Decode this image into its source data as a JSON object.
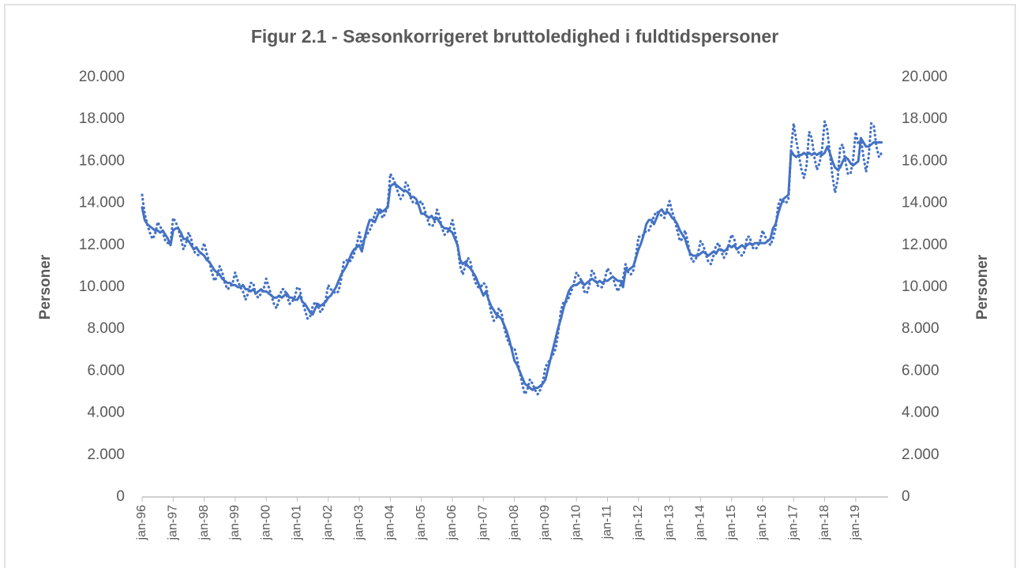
{
  "chart_data": {
    "type": "line",
    "title": "Figur 2.1 - Sæsonkorrigeret bruttoledighed i fuldtidspersoner",
    "ylabel": "Personer",
    "y2label": "Personer",
    "ylim": [
      0,
      20000
    ],
    "yticks": [
      0,
      {
        "value": 2000,
        "label": "2.000"
      },
      {
        "value": 4000,
        "label": "4.000"
      },
      {
        "value": 6000,
        "label": "6.000"
      },
      {
        "value": 8000,
        "label": "8.000"
      },
      {
        "value": 10000,
        "label": "10.000"
      },
      {
        "value": 12000,
        "label": "12.000"
      },
      {
        "value": 14000,
        "label": "14.000"
      },
      {
        "value": 16000,
        "label": "16.000"
      },
      {
        "value": 18000,
        "label": "18.000"
      },
      {
        "value": 20000,
        "label": "20.000"
      }
    ],
    "y2lim": [
      0,
      20000
    ],
    "y2ticks": [
      0,
      {
        "value": 2000,
        "label": "2.000"
      },
      {
        "value": 4000,
        "label": "4.000"
      },
      {
        "value": 6000,
        "label": "6.000"
      },
      {
        "value": 8000,
        "label": "8.000"
      },
      {
        "value": 10000,
        "label": "10.000"
      },
      {
        "value": 12000,
        "label": "12.000"
      },
      {
        "value": 14000,
        "label": "14.000"
      },
      {
        "value": 16000,
        "label": "16.000"
      },
      {
        "value": 18000,
        "label": "18.000"
      },
      {
        "value": 20000,
        "label": "20.000"
      }
    ],
    "grid": false,
    "categories": [
      "jan-96",
      null,
      null,
      null,
      null,
      null,
      null,
      null,
      null,
      null,
      null,
      null,
      "jan-97",
      null,
      null,
      null,
      null,
      null,
      null,
      null,
      null,
      null,
      null,
      null,
      "jan-98",
      null,
      null,
      null,
      null,
      null,
      null,
      null,
      null,
      null,
      null,
      null,
      "jan-99",
      null,
      null,
      null,
      null,
      null,
      null,
      null,
      null,
      null,
      null,
      null,
      "jan-00",
      null,
      null,
      null,
      null,
      null,
      null,
      null,
      null,
      null,
      null,
      null,
      "jan-01",
      null,
      null,
      null,
      null,
      null,
      null,
      null,
      null,
      null,
      null,
      null,
      "jan-02",
      null,
      null,
      null,
      null,
      null,
      null,
      null,
      null,
      null,
      null,
      null,
      "jan-03",
      null,
      null,
      null,
      null,
      null,
      null,
      null,
      null,
      null,
      null,
      null,
      "jan-04",
      null,
      null,
      null,
      null,
      null,
      null,
      null,
      null,
      null,
      null,
      null,
      "jan-05",
      null,
      null,
      null,
      null,
      null,
      null,
      null,
      null,
      null,
      null,
      null,
      "jan-06",
      null,
      null,
      null,
      null,
      null,
      null,
      null,
      null,
      null,
      null,
      null,
      "jan-07",
      null,
      null,
      null,
      null,
      null,
      null,
      null,
      null,
      null,
      null,
      null,
      "jan-08",
      null,
      null,
      null,
      null,
      null,
      null,
      null,
      null,
      null,
      null,
      null,
      "jan-09",
      null,
      null,
      null,
      null,
      null,
      null,
      null,
      null,
      null,
      null,
      null,
      "jan-10",
      null,
      null,
      null,
      null,
      null,
      null,
      null,
      null,
      null,
      null,
      null,
      "jan-11",
      null,
      null,
      null,
      null,
      null,
      null,
      null,
      null,
      null,
      null,
      null,
      "jan-12",
      null,
      null,
      null,
      null,
      null,
      null,
      null,
      null,
      null,
      null,
      null,
      "jan-13",
      null,
      null,
      null,
      null,
      null,
      null,
      null,
      null,
      null,
      null,
      null,
      "jan-14",
      null,
      null,
      null,
      null,
      null,
      null,
      null,
      null,
      null,
      null,
      null,
      "jan-15",
      null,
      null,
      null,
      null,
      null,
      null,
      null,
      null,
      null,
      null,
      null,
      "jan-16",
      null,
      null,
      null,
      null,
      null,
      null,
      null,
      null,
      null,
      null,
      null,
      "jan-17",
      null,
      null,
      null,
      null,
      null,
      null,
      null,
      null,
      null,
      null,
      null,
      "jan-18",
      null,
      null,
      null,
      null,
      null,
      null,
      null,
      null,
      null,
      null,
      null,
      "jan-19",
      null,
      null,
      null,
      null,
      null,
      null,
      null,
      null,
      null,
      null
    ],
    "series": [
      {
        "color": "#4472c4",
        "style": "solid",
        "values": [
          13800,
          13200,
          13000,
          12900,
          12800,
          12700,
          12700,
          12600,
          12700,
          12500,
          12300,
          12000,
          12700,
          12800,
          12800,
          12600,
          12300,
          12300,
          12200,
          12000,
          11800,
          11900,
          11700,
          11600,
          11500,
          11300,
          11200,
          11000,
          10800,
          10700,
          10600,
          10400,
          10300,
          10200,
          10200,
          10100,
          10100,
          10000,
          10000,
          10100,
          9900,
          9900,
          9800,
          9900,
          9700,
          9800,
          9900,
          9800,
          9800,
          9700,
          9600,
          9500,
          9500,
          9600,
          9500,
          9600,
          9700,
          9500,
          9500,
          9400,
          9400,
          9600,
          9300,
          9200,
          9000,
          8800,
          8700,
          9000,
          9200,
          9100,
          9200,
          9300,
          9500,
          9600,
          9800,
          10000,
          10300,
          10600,
          10800,
          11000,
          11300,
          11600,
          11800,
          11900,
          12000,
          11700,
          12300,
          12800,
          13200,
          13200,
          13100,
          13400,
          13700,
          13600,
          13700,
          13800,
          14800,
          14900,
          14900,
          14800,
          14700,
          14600,
          14600,
          14500,
          14300,
          14300,
          14200,
          13900,
          13500,
          13500,
          13400,
          13300,
          13400,
          13200,
          13300,
          13100,
          12900,
          12800,
          12800,
          12700,
          12600,
          12300,
          12000,
          11300,
          11100,
          11200,
          11000,
          10900,
          10700,
          10500,
          10200,
          9900,
          9600,
          9800,
          9400,
          9100,
          8900,
          8700,
          8600,
          8500,
          8200,
          7900,
          7500,
          7000,
          6500,
          6300,
          6000,
          5700,
          5400,
          5300,
          5200,
          5100,
          5200,
          5200,
          5300,
          5400,
          5600,
          6100,
          6600,
          7100,
          7600,
          8100,
          8500,
          9000,
          9400,
          9800,
          10000,
          10100,
          10100,
          10200,
          10300,
          10100,
          10200,
          10300,
          10400,
          10300,
          10200,
          10300,
          10200,
          10300,
          10300,
          10400,
          10500,
          10400,
          10300,
          10300,
          10000,
          10800,
          10800,
          10900,
          11000,
          11400,
          11800,
          12100,
          12500,
          13000,
          13200,
          13200,
          13000,
          13300,
          13600,
          13700,
          13500,
          13600,
          13500,
          13300,
          13200,
          13000,
          12700,
          12500,
          12300,
          11900,
          11600,
          11500,
          11500,
          11500,
          11600,
          11700,
          11600,
          11500,
          11600,
          11700,
          11600,
          11800,
          11800,
          11700,
          11800,
          12000,
          11900,
          12000,
          11800,
          11900,
          12000,
          11900,
          12000,
          12100,
          12000,
          12100,
          12100,
          12100,
          12100,
          12100,
          12200,
          12300,
          12800,
          13000,
          13500,
          13900,
          14200,
          14300,
          14400,
          16500,
          16300,
          16200,
          16300,
          16300,
          16400,
          16300,
          16400,
          16300,
          16400,
          16300,
          16400,
          16300,
          16400,
          16700,
          16400,
          16000,
          15700,
          15600,
          15700,
          16000,
          16200,
          16100,
          15900,
          15800,
          15900,
          16000,
          17100,
          16900,
          16700,
          16700,
          16800,
          16900,
          16900,
          16900,
          16900
        ]
      },
      {
        "color": "#4472c4",
        "style": "dotted",
        "values": [
          14400,
          13500,
          13000,
          12600,
          12300,
          12500,
          13100,
          12900,
          12600,
          12200,
          12100,
          12100,
          13300,
          13100,
          12800,
          12300,
          11800,
          12100,
          12600,
          12300,
          11700,
          11600,
          11500,
          11700,
          12100,
          11600,
          11200,
          10700,
          10300,
          10500,
          11000,
          10700,
          10200,
          9900,
          10000,
          10200,
          10700,
          10300,
          10000,
          9800,
          9400,
          9700,
          10200,
          10200,
          9600,
          9500,
          9700,
          9900,
          10400,
          10000,
          9600,
          9200,
          9000,
          9400,
          9900,
          9900,
          9600,
          9200,
          9300,
          9500,
          10000,
          9900,
          9300,
          8900,
          8500,
          8600,
          9100,
          9300,
          9100,
          8800,
          9000,
          9400,
          10100,
          9900,
          9800,
          9700,
          9800,
          10400,
          11200,
          11300,
          11200,
          11300,
          11600,
          12000,
          12600,
          12000,
          12300,
          12500,
          12700,
          13000,
          13500,
          13700,
          13600,
          13300,
          13500,
          13900,
          15400,
          15200,
          14900,
          14500,
          14200,
          14400,
          15000,
          14800,
          14200,
          14000,
          14000,
          14000,
          14100,
          13800,
          13400,
          13000,
          12900,
          13000,
          13700,
          13400,
          12800,
          12500,
          12600,
          12800,
          13200,
          12600,
          12000,
          11000,
          10600,
          11000,
          11400,
          11200,
          10600,
          10200,
          10000,
          10000,
          10200,
          10100,
          9400,
          8800,
          8400,
          8500,
          9000,
          8800,
          8100,
          7600,
          7300,
          7100,
          7100,
          6600,
          6000,
          5400,
          4900,
          5100,
          5600,
          5400,
          5100,
          4900,
          5100,
          5500,
          6200,
          6400,
          6600,
          6800,
          7100,
          7900,
          8900,
          9300,
          9300,
          9500,
          9800,
          10200,
          10700,
          10500,
          10300,
          9800,
          9700,
          10100,
          10800,
          10600,
          10100,
          10000,
          10000,
          10400,
          10900,
          10700,
          10500,
          10100,
          9800,
          10100,
          10400,
          11100,
          10700,
          10600,
          10800,
          11500,
          12400,
          12400,
          12500,
          12700,
          12700,
          13000,
          13400,
          13600,
          13500,
          13400,
          13300,
          13700,
          14100,
          13600,
          13200,
          12700,
          12200,
          12300,
          12700,
          12200,
          11500,
          11200,
          11300,
          11600,
          12200,
          12000,
          11600,
          11200,
          11100,
          11500,
          12000,
          12100,
          11700,
          11400,
          11600,
          12100,
          12500,
          12300,
          11800,
          11600,
          11500,
          11700,
          12400,
          12400,
          11900,
          11800,
          11900,
          12200,
          12700,
          12400,
          12200,
          12000,
          12300,
          12800,
          13900,
          14200,
          14100,
          14000,
          14200,
          16600,
          17800,
          17000,
          16300,
          15600,
          15200,
          15800,
          17400,
          17100,
          16200,
          15600,
          15900,
          16600,
          17900,
          17500,
          16400,
          15300,
          14500,
          15100,
          16700,
          16800,
          16000,
          15400,
          15400,
          16100,
          17400,
          16800,
          17100,
          16200,
          15500,
          16200,
          17800,
          17700,
          16700,
          16200,
          16400
        ]
      }
    ]
  }
}
